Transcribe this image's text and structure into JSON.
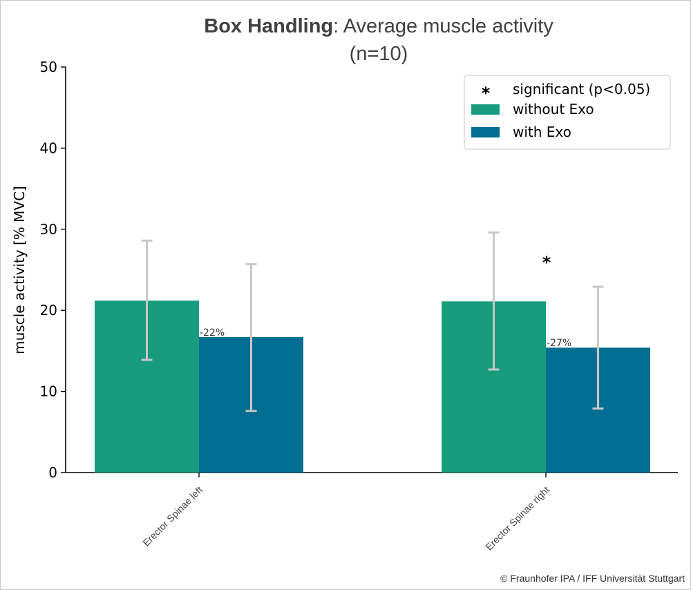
{
  "chart_data": {
    "type": "bar",
    "title_bold": "Box Handling",
    "title_rest": ": Average muscle activity",
    "subtitle": "(n=10)",
    "ylabel": "muscle activity [% MVC]",
    "xlabel": "",
    "ylim": [
      0,
      50
    ],
    "yticks": [
      0,
      10,
      20,
      30,
      40,
      50
    ],
    "categories": [
      "Erector Spinae left",
      "Erector Spinae right"
    ],
    "series": [
      {
        "name": "without Exo",
        "color": "#179c7d",
        "values": [
          21.2,
          21.1
        ],
        "err_low": [
          13.9,
          12.7
        ],
        "err_high": [
          28.6,
          29.6
        ]
      },
      {
        "name": "with Exo",
        "color": "#006e92",
        "values": [
          16.7,
          15.4
        ],
        "err_low": [
          7.6,
          7.9
        ],
        "err_high": [
          25.7,
          22.9
        ]
      }
    ],
    "change_labels": [
      "-22%",
      "-27%"
    ],
    "significance": [
      false,
      true
    ],
    "legend": {
      "position": "top-right",
      "significance_label": "significant (p<0.05)",
      "significance_marker": "*"
    },
    "error_bar_color": "#c8c8c8"
  },
  "copyright": "© Fraunhofer IPA / IFF Universität Stuttgart"
}
